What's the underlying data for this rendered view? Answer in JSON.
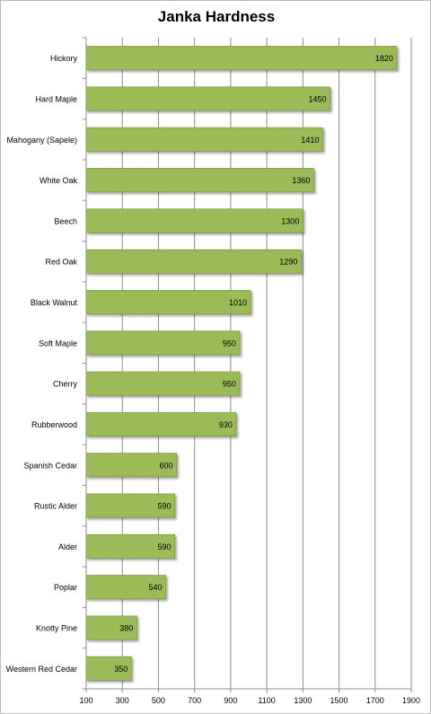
{
  "chart_data": {
    "type": "bar",
    "orientation": "horizontal",
    "title": "Janka Hardness",
    "xlabel": "",
    "ylabel": "",
    "categories": [
      "Hickory",
      "Hard Maple",
      "Mahogany (Sapele)",
      "White Oak",
      "Beech",
      "Red Oak",
      "Black Walnut",
      "Soft Maple",
      "Cherry",
      "Rubberwood",
      "Spanish Cedar",
      "Rustic Alder",
      "Alder",
      "Poplar",
      "Knotty Pine",
      "Western Red Cedar"
    ],
    "values": [
      1820,
      1450,
      1410,
      1360,
      1300,
      1290,
      1010,
      950,
      950,
      930,
      600,
      590,
      590,
      540,
      380,
      350
    ],
    "xlim": [
      100,
      1900
    ],
    "xticks": [
      100,
      300,
      500,
      700,
      900,
      1100,
      1300,
      1500,
      1700,
      1900
    ],
    "grid": "vertical",
    "legend": "none",
    "bar_color": "#9bbb59",
    "bar_border_color": "#7f9a48",
    "data_labels": "inside-end"
  }
}
